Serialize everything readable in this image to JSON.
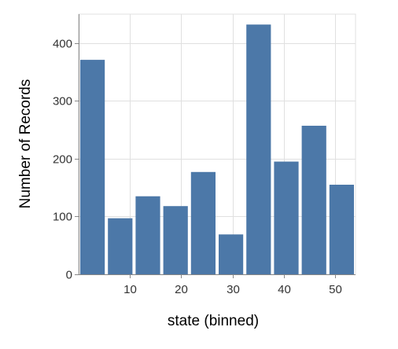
{
  "chart_data": {
    "type": "bar",
    "xlabel": "state (binned)",
    "ylabel": "Number of Records",
    "x_bin_start": 0,
    "x_bin_step": 5.4,
    "xlim": [
      0,
      54
    ],
    "x_ticks": [
      10,
      20,
      30,
      40,
      50
    ],
    "ylim": [
      0,
      450
    ],
    "y_ticks": [
      0,
      100,
      200,
      300,
      400
    ],
    "bins": [
      {
        "x_start": 0,
        "x_end": 5.4,
        "value": 371
      },
      {
        "x_start": 5.4,
        "x_end": 10.8,
        "value": 97
      },
      {
        "x_start": 10.8,
        "x_end": 16.2,
        "value": 135
      },
      {
        "x_start": 16.2,
        "x_end": 21.6,
        "value": 118
      },
      {
        "x_start": 21.6,
        "x_end": 27.0,
        "value": 177
      },
      {
        "x_start": 27.0,
        "x_end": 32.4,
        "value": 69
      },
      {
        "x_start": 32.4,
        "x_end": 37.8,
        "value": 432
      },
      {
        "x_start": 37.8,
        "x_end": 43.2,
        "value": 195
      },
      {
        "x_start": 43.2,
        "x_end": 48.6,
        "value": 257
      },
      {
        "x_start": 48.6,
        "x_end": 54.0,
        "value": 155
      }
    ],
    "grid": true,
    "bar_color": "#4c78a8",
    "grid_color": "#e0e0e0",
    "axis_color": "#888888"
  }
}
